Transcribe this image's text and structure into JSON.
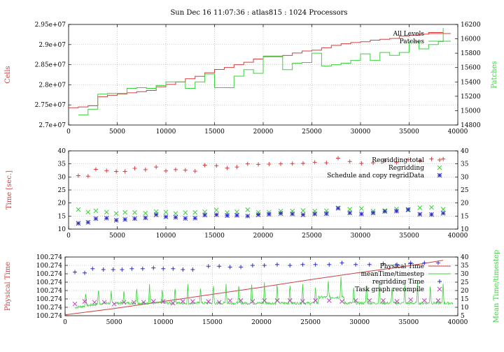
{
  "title": "Sun Dec 16 11:07:36 : atlas815 : 1024 Processors",
  "colors": {
    "red": "#d04040",
    "green": "#3ad23a",
    "blue": "#3030c0",
    "magenta": "#c040c0",
    "grid": "#999999"
  },
  "chart_data": [
    {
      "type": "line",
      "ylabel": "Cells",
      "y2label": "Patches",
      "xlim": [
        0,
        40000
      ],
      "ylim": [
        27000000,
        29500000
      ],
      "y2lim": [
        14800,
        16200
      ],
      "xticks": [
        "0",
        "5000",
        "10000",
        "15000",
        "20000",
        "25000",
        "30000",
        "35000",
        "40000"
      ],
      "yticks": [
        "2.7e+07",
        "2.75e+07",
        "2.8e+07",
        "2.85e+07",
        "2.9e+07",
        "2.95e+07"
      ],
      "y2ticks": [
        "14800",
        "15000",
        "15200",
        "15400",
        "15600",
        "15800",
        "16000",
        "16200"
      ],
      "grid": true,
      "legend_position": "top-right",
      "series": [
        {
          "name": "All Levels",
          "axis": "left",
          "step": true,
          "x": [
            0,
            1000,
            2000,
            3000,
            4000,
            5000,
            6000,
            7000,
            8000,
            9000,
            10000,
            11000,
            12000,
            13000,
            14000,
            15000,
            16000,
            17000,
            18000,
            19000,
            20000,
            21000,
            22000,
            23000,
            24000,
            25000,
            26000,
            27000,
            28000,
            29000,
            30000,
            31000,
            32000,
            33000,
            34000,
            35000,
            36000,
            37000,
            38500
          ],
          "values": [
            27430000,
            27450000,
            27480000,
            27700000,
            27740000,
            27770000,
            27800000,
            27830000,
            27860000,
            27950000,
            28010000,
            28070000,
            28150000,
            28210000,
            28300000,
            28380000,
            28430000,
            28500000,
            28560000,
            28640000,
            28700000,
            28700000,
            28730000,
            28790000,
            28840000,
            28860000,
            28920000,
            28980000,
            29020000,
            29050000,
            29070000,
            29110000,
            29130000,
            29150000,
            29210000,
            29230000,
            29260000,
            29300000,
            29300000
          ]
        },
        {
          "name": "Patches",
          "axis": "right",
          "step": true,
          "x": [
            1000,
            2000,
            3000,
            4000,
            6000,
            7000,
            8000,
            9000,
            10000,
            12000,
            13000,
            14000,
            15000,
            17000,
            18000,
            19000,
            20000,
            22000,
            23000,
            24000,
            25000,
            26000,
            27000,
            28000,
            29000,
            30000,
            31000,
            32000,
            33000,
            34000,
            35000,
            36000,
            37000,
            38000,
            38500
          ],
          "values": [
            14940,
            15020,
            15230,
            15240,
            15310,
            15320,
            15310,
            15350,
            15400,
            15310,
            15400,
            15510,
            15320,
            15480,
            15570,
            15520,
            15760,
            15570,
            15660,
            15670,
            15800,
            15620,
            15640,
            15660,
            15700,
            15790,
            15700,
            15810,
            15770,
            15810,
            15960,
            15860,
            15920,
            15960,
            16150
          ]
        }
      ]
    },
    {
      "type": "scatter",
      "ylabel": "Time [sec.]",
      "xlim": [
        0,
        40000
      ],
      "ylim": [
        10,
        40
      ],
      "xticks": [
        "0",
        "5000",
        "10000",
        "15000",
        "20000",
        "25000",
        "30000",
        "35000",
        "40000"
      ],
      "yticks": [
        "10",
        "15",
        "20",
        "25",
        "30",
        "35",
        "40"
      ],
      "y2ticks": [
        "10",
        "15",
        "20",
        "25",
        "30",
        "35",
        "40"
      ],
      "grid": true,
      "legend_position": "top-right",
      "x": [
        1000,
        2000,
        2800,
        3900,
        4900,
        5800,
        6800,
        7900,
        9000,
        10000,
        11000,
        12000,
        13000,
        14000,
        15200,
        16300,
        17300,
        18400,
        19500,
        20600,
        21800,
        23000,
        24100,
        25300,
        26500,
        27700,
        28900,
        30100,
        31300,
        32500,
        33700,
        34900,
        36100,
        37300,
        38500
      ],
      "series": [
        {
          "name": "Regridding total",
          "marker": "plus",
          "values": [
            30.5,
            30.3,
            32.9,
            32.4,
            32.1,
            32.1,
            33.3,
            32.8,
            33.8,
            32.3,
            32.8,
            32.6,
            32.2,
            34.5,
            34.3,
            33.4,
            33.8,
            35.0,
            34.8,
            34.9,
            35.0,
            35.1,
            35.2,
            35.6,
            35.4,
            37.2,
            35.9,
            35.2,
            35.4,
            36.3,
            35.5,
            36.6,
            36.2,
            36.9,
            36.9
          ]
        },
        {
          "name": "Regridding",
          "marker": "x",
          "values": [
            17.5,
            16.5,
            17.0,
            16.5,
            16.0,
            16.4,
            16.4,
            16.1,
            16.7,
            16.5,
            16.0,
            16.3,
            16.4,
            16.6,
            17.3,
            16.3,
            16.6,
            17.4,
            16.4,
            16.5,
            16.9,
            16.9,
            17.1,
            16.9,
            17.0,
            18.1,
            17.6,
            17.9,
            16.9,
            17.1,
            17.7,
            17.3,
            18.2,
            18.3,
            17.6
          ]
        },
        {
          "name": "Schedule and copy regridData",
          "marker": "star",
          "values": [
            12.2,
            12.6,
            14.0,
            14.2,
            13.4,
            13.7,
            14.0,
            14.3,
            15.5,
            14.7,
            14.5,
            14.1,
            14.2,
            15.4,
            15.5,
            15.2,
            15.3,
            15.0,
            15.5,
            15.7,
            16.0,
            15.8,
            15.5,
            15.8,
            15.9,
            18.0,
            16.2,
            15.8,
            16.2,
            16.8,
            16.9,
            17.5,
            15.7,
            15.6,
            16.1
          ]
        }
      ]
    },
    {
      "type": "line",
      "ylabel": "Physical Time",
      "y2label": "Mean Time/timestep",
      "xlim": [
        0,
        40000
      ],
      "ylim": [
        0,
        7
      ],
      "y2lim": [
        5,
        40
      ],
      "xticks": [
        "0",
        "5000",
        "10000",
        "15000",
        "20000",
        "25000",
        "30000",
        "35000",
        "40000"
      ],
      "yticks": [
        "100.274",
        "100.274",
        "100.274",
        "100.274",
        "100.274",
        "100.274",
        "100.274",
        "100.274"
      ],
      "y2ticks": [
        "5",
        "10",
        "15",
        "20",
        "25",
        "30",
        "35",
        "40"
      ],
      "grid": true,
      "legend_position": "top-right",
      "series": [
        {
          "name": "Physical Time",
          "axis": "left",
          "kind": "line",
          "x": [
            0,
            5000,
            10000,
            15000,
            20000,
            25000,
            30000,
            35000,
            38500
          ],
          "values": [
            0.1,
            0.85,
            1.7,
            2.55,
            3.4,
            4.3,
            5.15,
            5.95,
            6.6
          ]
        },
        {
          "name": "meanTime/timestep",
          "axis": "right",
          "kind": "spikes",
          "baseline": 12.5,
          "spike_heights": [
            20,
            19,
            22,
            20,
            21,
            23,
            24,
            22,
            23,
            24,
            23,
            25,
            24,
            25,
            26,
            25,
            26,
            25,
            24,
            24,
            24,
            25,
            24,
            25,
            25,
            24,
            25,
            25,
            25,
            26
          ]
        },
        {
          "name": "regridding Time",
          "axis": "right",
          "marker": "plus",
          "x": [
            1000,
            2000,
            2800,
            3900,
            4900,
            5800,
            6800,
            7900,
            9000,
            10000,
            11000,
            12000,
            13000,
            14600,
            15700,
            16800,
            17900,
            19100,
            20300,
            21600,
            22900,
            24200,
            25500,
            26900,
            28200,
            29600,
            31000,
            32400,
            33800,
            35200,
            36600,
            38000
          ],
          "values": [
            31.0,
            30.5,
            33.0,
            32.5,
            32.5,
            32.5,
            33.0,
            33.0,
            33.5,
            33.0,
            33.0,
            32.5,
            32.5,
            34.5,
            34.5,
            34.0,
            34.0,
            35.0,
            35.0,
            35.5,
            35.0,
            35.5,
            35.5,
            35.5,
            36.5,
            35.5,
            35.5,
            36.0,
            35.5,
            36.5,
            36.5,
            36.5
          ]
        },
        {
          "name": "Task graph recompile",
          "axis": "right",
          "marker": "x",
          "x": [
            1000,
            2000,
            3000,
            4000,
            5000,
            6000,
            7000,
            8000,
            9000,
            10000,
            11000,
            12000,
            13000,
            14600,
            15700,
            16800,
            17900,
            19100,
            20300,
            21600,
            22900,
            24200,
            25500,
            26900,
            28200,
            29600,
            31000,
            32400,
            33800,
            35200,
            36600,
            38000
          ],
          "values": [
            12.0,
            13.5,
            13.0,
            13.0,
            12.0,
            13.0,
            13.0,
            13.0,
            13.5,
            13.5,
            12.5,
            13.5,
            13.5,
            13.5,
            13.0,
            14.0,
            14.0,
            13.5,
            14.0,
            14.0,
            14.0,
            13.5,
            14.0,
            14.0,
            13.5,
            14.0,
            14.0,
            14.0,
            13.5,
            14.5,
            14.0,
            14.0
          ]
        }
      ]
    }
  ]
}
